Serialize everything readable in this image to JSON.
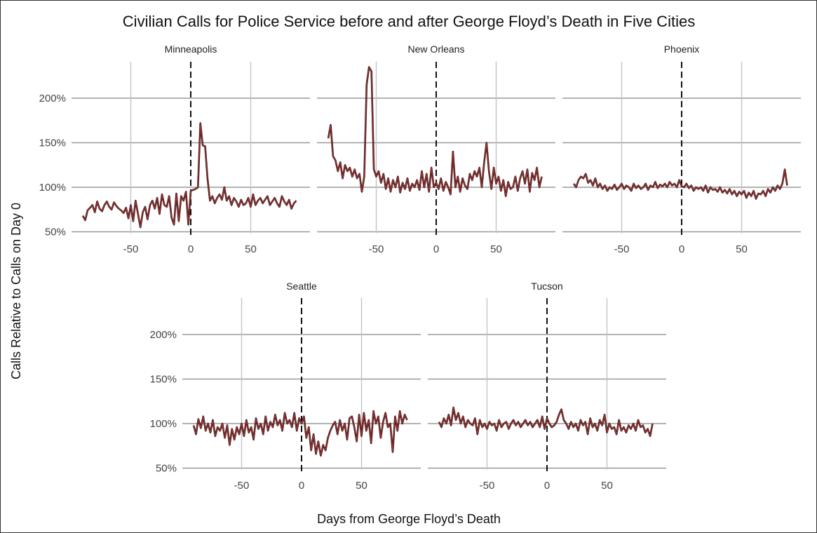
{
  "chart_data": {
    "type": "line",
    "title": "Civilian Calls for Police Service before and after George Floyd’s Death in Five Cities",
    "xlabel": "Days from George Floyd’s Death",
    "ylabel": "Calls Relative to Calls on Day 0",
    "xlim": [
      -99,
      99
    ],
    "ylim": [
      50,
      235
    ],
    "x_ticks": [
      -50,
      0,
      50
    ],
    "x_tick_labels": [
      "-50",
      "0",
      "50"
    ],
    "y_ticks": [
      50,
      100,
      150,
      200
    ],
    "y_tick_labels": [
      "50%",
      "100%",
      "150%",
      "200%"
    ],
    "reference_line": {
      "x": 0,
      "style": "dashed"
    },
    "line_color": "#9b2f2f",
    "x": {
      "start": -90,
      "step": 2,
      "count": 90
    },
    "panels": [
      {
        "name": "Minneapolis",
        "values": [
          68,
          63,
          74,
          77,
          80,
          72,
          84,
          76,
          73,
          80,
          84,
          78,
          75,
          83,
          79,
          76,
          74,
          71,
          77,
          65,
          80,
          62,
          85,
          70,
          55,
          72,
          78,
          64,
          80,
          85,
          76,
          88,
          70,
          92,
          80,
          78,
          90,
          66,
          58,
          93,
          62,
          90,
          85,
          95,
          58,
          96,
          97,
          98,
          100,
          172,
          147,
          146,
          110,
          85,
          90,
          82,
          88,
          92,
          86,
          100,
          85,
          90,
          80,
          88,
          84,
          78,
          86,
          80,
          82,
          88,
          78,
          92,
          80,
          85,
          88,
          82,
          86,
          90,
          80,
          84,
          88,
          82,
          78,
          90,
          84,
          80,
          86,
          76,
          82,
          85
        ]
      },
      {
        "name": "New Orleans",
        "values": [
          155,
          170,
          135,
          130,
          118,
          128,
          110,
          125,
          118,
          122,
          112,
          120,
          110,
          115,
          95,
          112,
          215,
          235,
          230,
          120,
          112,
          118,
          105,
          115,
          98,
          110,
          95,
          108,
          100,
          112,
          94,
          105,
          98,
          110,
          96,
          104,
          100,
          108,
          97,
          118,
          100,
          115,
          95,
          122,
          100,
          105,
          98,
          110,
          96,
          106,
          100,
          92,
          140,
          100,
          112,
          95,
          110,
          102,
          98,
          115,
          108,
          118,
          112,
          122,
          100,
          128,
          150,
          118,
          98,
          122,
          104,
          112,
          96,
          108,
          90,
          106,
          98,
          100,
          112,
          96,
          110,
          118,
          104,
          120,
          95,
          116,
          108,
          122,
          100,
          112
        ]
      },
      {
        "name": "Phoenix",
        "values": [
          104,
          100,
          108,
          112,
          110,
          115,
          105,
          108,
          102,
          110,
          100,
          104,
          98,
          102,
          96,
          100,
          98,
          103,
          97,
          100,
          104,
          98,
          102,
          100,
          96,
          104,
          99,
          102,
          98,
          100,
          104,
          97,
          102,
          100,
          106,
          99,
          103,
          101,
          104,
          100,
          106,
          102,
          104,
          100,
          108,
          101,
          100,
          104,
          99,
          102,
          96,
          100,
          98,
          100,
          96,
          102,
          94,
          100,
          97,
          98,
          95,
          100,
          94,
          97,
          93,
          98,
          92,
          96,
          90,
          95,
          92,
          96,
          88,
          94,
          90,
          96,
          87,
          93,
          92,
          96,
          90,
          98,
          94,
          100,
          96,
          102,
          98,
          104,
          120,
          102
        ]
      },
      {
        "name": "Seattle",
        "values": [
          98,
          88,
          105,
          95,
          108,
          92,
          100,
          90,
          104,
          86,
          96,
          92,
          100,
          84,
          98,
          76,
          94,
          82,
          96,
          88,
          100,
          86,
          104,
          90,
          96,
          82,
          106,
          94,
          100,
          88,
          108,
          92,
          102,
          96,
          110,
          98,
          104,
          92,
          112,
          100,
          104,
          96,
          112,
          92,
          106,
          100,
          108,
          84,
          96,
          70,
          88,
          66,
          80,
          64,
          76,
          70,
          84,
          92,
          98,
          102,
          88,
          104,
          92,
          100,
          82,
          106,
          108,
          96,
          80,
          110,
          86,
          112,
          92,
          104,
          78,
          114,
          100,
          108,
          84,
          102,
          112,
          96,
          100,
          68,
          108,
          92,
          114,
          100,
          110,
          104
        ]
      },
      {
        "name": "Tucson",
        "values": [
          102,
          96,
          106,
          100,
          110,
          98,
          118,
          104,
          112,
          100,
          108,
          96,
          104,
          100,
          98,
          106,
          88,
          104,
          96,
          100,
          94,
          102,
          98,
          100,
          92,
          104,
          96,
          100,
          102,
          94,
          100,
          104,
          98,
          102,
          96,
          100,
          104,
          98,
          102,
          96,
          100,
          104,
          96,
          108,
          94,
          106,
          100,
          96,
          98,
          102,
          110,
          116,
          104,
          100,
          94,
          102,
          96,
          100,
          92,
          104,
          98,
          102,
          88,
          106,
          96,
          100,
          92,
          104,
          98,
          110,
          90,
          100,
          94,
          96,
          88,
          104,
          92,
          96,
          90,
          98,
          94,
          100,
          92,
          104,
          96,
          98,
          90,
          94,
          86,
          100
        ]
      }
    ]
  }
}
